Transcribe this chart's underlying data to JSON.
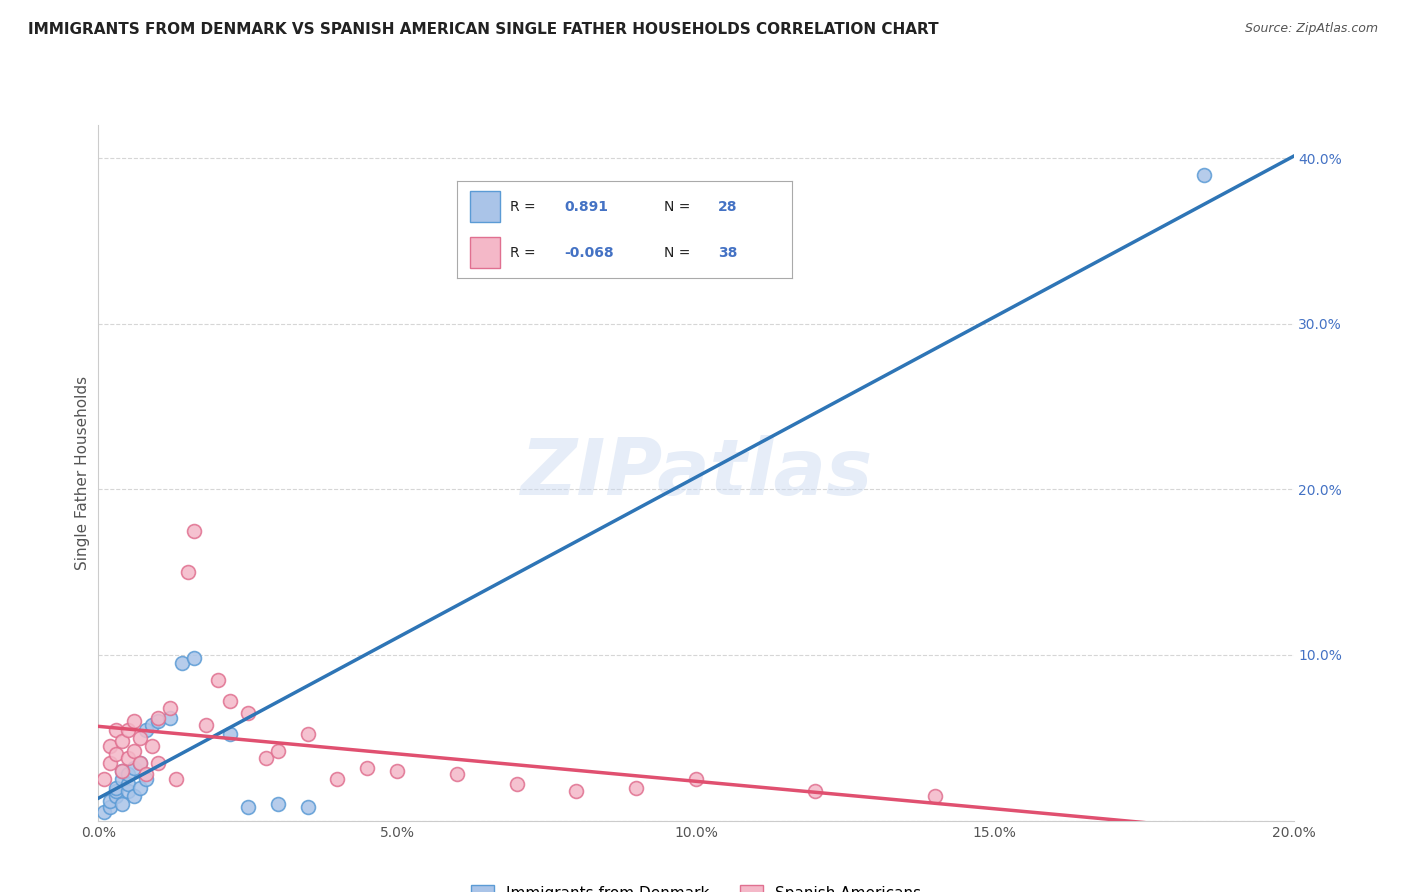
{
  "title": "IMMIGRANTS FROM DENMARK VS SPANISH AMERICAN SINGLE FATHER HOUSEHOLDS CORRELATION CHART",
  "source": "Source: ZipAtlas.com",
  "ylabel": "Single Father Households",
  "watermark": "ZIPatlas",
  "blue_R": "0.891",
  "blue_N": "28",
  "pink_R": "-0.068",
  "pink_N": "38",
  "xlim": [
    0.0,
    0.2
  ],
  "ylim": [
    0.0,
    0.42
  ],
  "x_ticks": [
    0.0,
    0.05,
    0.1,
    0.15,
    0.2
  ],
  "x_tick_labels": [
    "0.0%",
    "",
    "",
    "",
    "20.0%"
  ],
  "y_ticks": [
    0.0,
    0.1,
    0.2,
    0.3,
    0.4
  ],
  "y_tick_labels": [
    "",
    "",
    "",
    "",
    ""
  ],
  "right_y_ticks": [
    0.1,
    0.2,
    0.3,
    0.4
  ],
  "right_y_tick_labels": [
    "10.0%",
    "20.0%",
    "30.0%",
    "40.0%"
  ],
  "blue_color": "#aac4e8",
  "blue_edge_color": "#5b9bd5",
  "blue_line_color": "#2e75b6",
  "pink_color": "#f4b8c8",
  "pink_edge_color": "#e07090",
  "pink_line_color": "#e05070",
  "blue_scatter_x": [
    0.001,
    0.002,
    0.002,
    0.003,
    0.003,
    0.003,
    0.004,
    0.004,
    0.004,
    0.005,
    0.005,
    0.005,
    0.006,
    0.006,
    0.007,
    0.007,
    0.008,
    0.008,
    0.009,
    0.01,
    0.012,
    0.014,
    0.016,
    0.022,
    0.025,
    0.03,
    0.035,
    0.185
  ],
  "blue_scatter_y": [
    0.005,
    0.008,
    0.012,
    0.015,
    0.018,
    0.02,
    0.01,
    0.025,
    0.03,
    0.018,
    0.022,
    0.028,
    0.015,
    0.032,
    0.02,
    0.035,
    0.025,
    0.055,
    0.058,
    0.06,
    0.062,
    0.095,
    0.098,
    0.052,
    0.008,
    0.01,
    0.008,
    0.39
  ],
  "pink_scatter_x": [
    0.001,
    0.002,
    0.002,
    0.003,
    0.003,
    0.004,
    0.004,
    0.005,
    0.005,
    0.006,
    0.006,
    0.007,
    0.007,
    0.008,
    0.009,
    0.01,
    0.01,
    0.012,
    0.013,
    0.015,
    0.016,
    0.018,
    0.02,
    0.022,
    0.025,
    0.028,
    0.03,
    0.035,
    0.04,
    0.045,
    0.05,
    0.06,
    0.07,
    0.08,
    0.09,
    0.1,
    0.12,
    0.14
  ],
  "pink_scatter_y": [
    0.025,
    0.035,
    0.045,
    0.04,
    0.055,
    0.03,
    0.048,
    0.038,
    0.055,
    0.042,
    0.06,
    0.035,
    0.05,
    0.028,
    0.045,
    0.062,
    0.035,
    0.068,
    0.025,
    0.15,
    0.175,
    0.058,
    0.085,
    0.072,
    0.065,
    0.038,
    0.042,
    0.052,
    0.025,
    0.032,
    0.03,
    0.028,
    0.022,
    0.018,
    0.02,
    0.025,
    0.018,
    0.015
  ],
  "legend_labels": [
    "Immigrants from Denmark",
    "Spanish Americans"
  ],
  "background_color": "#ffffff",
  "grid_color": "#cccccc",
  "title_color": "#222222",
  "axis_label_color": "#555555",
  "right_tick_color": "#4472c4",
  "source_color": "#555555",
  "bottom_x_tick_labels": [
    "0.0%",
    "5.0%",
    "10.0%",
    "15.0%",
    "20.0%"
  ]
}
